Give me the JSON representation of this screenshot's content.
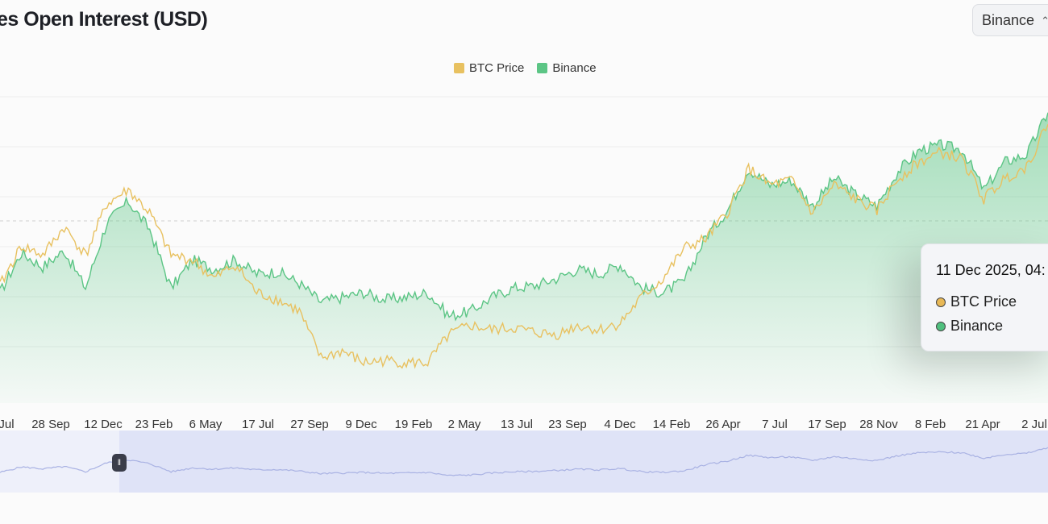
{
  "header": {
    "title": "es Open Interest (USD)",
    "exchange_selector": {
      "value": "Binance",
      "icon": "chevron-updown-icon"
    }
  },
  "legend": [
    {
      "label": "BTC Price",
      "color": "#e8c160"
    },
    {
      "label": "Binance",
      "color": "#5cc585"
    }
  ],
  "tooltip": {
    "date": "11 Dec 2025, 04:",
    "rows": [
      {
        "label": "BTC Price",
        "color": "#e8b856"
      },
      {
        "label": "Binance",
        "color": "#4fbf7e"
      }
    ]
  },
  "chart_data": {
    "type": "area",
    "x_ticks": [
      "Jul",
      "28 Sep",
      "12 Dec",
      "23 Feb",
      "6 May",
      "17 Jul",
      "27 Sep",
      "9 Dec",
      "19 Feb",
      "2 May",
      "13 Jul",
      "23 Sep",
      "4 Dec",
      "14 Feb",
      "26 Apr",
      "7 Jul",
      "17 Sep",
      "28 Nov",
      "8 Feb",
      "21 Apr",
      "2 Jul"
    ],
    "y_axis": {
      "labels_shown": false,
      "range": [
        0,
        100
      ],
      "gridlines": true
    },
    "series": [
      {
        "name": "BTC Price",
        "color": "#e8c160",
        "style": "line",
        "values": [
          33,
          50,
          46,
          58,
          46,
          68,
          74,
          64,
          46,
          44,
          36,
          42,
          30,
          27,
          22,
          2,
          5,
          0,
          1,
          0,
          0,
          12,
          16,
          14,
          15,
          13,
          12,
          16,
          14,
          17,
          28,
          36,
          49,
          53,
          64,
          83,
          76,
          78,
          64,
          76,
          70,
          65,
          79,
          86,
          90,
          87,
          70,
          79,
          84,
          102
        ]
      },
      {
        "name": "Binance",
        "color": "#5cc585",
        "style": "area",
        "values": [
          30,
          47,
          41,
          48,
          32,
          60,
          69,
          57,
          32,
          44,
          40,
          44,
          38,
          39,
          34,
          26,
          28,
          30,
          27,
          28,
          30,
          20,
          22,
          28,
          32,
          33,
          36,
          40,
          38,
          42,
          32,
          30,
          35,
          54,
          65,
          83,
          76,
          78,
          67,
          79,
          72,
          67,
          82,
          91,
          93,
          91,
          74,
          86,
          89,
          107
        ]
      }
    ],
    "navigator": {
      "selection_start_fraction": 0.114
    }
  }
}
